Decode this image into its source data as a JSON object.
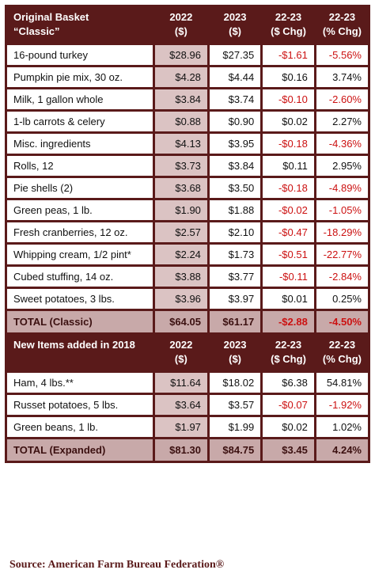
{
  "classic": {
    "header": {
      "name_line1": "Original Basket",
      "name_line2": "“Classic”",
      "y22_line1": "2022",
      "y22_line2": "($)",
      "y23_line1": "2023",
      "y23_line2": "($)",
      "chg_line1": "22-23",
      "chg_line2": "($ Chg)",
      "pct_line1": "22-23",
      "pct_line2": "(% Chg)"
    },
    "rows": [
      {
        "name": "16-pound turkey",
        "y22": "$28.96",
        "y23": "$27.35",
        "chg": "-$1.61",
        "pct": "-5.56%"
      },
      {
        "name": "Pumpkin pie mix, 30 oz.",
        "y22": "$4.28",
        "y23": "$4.44",
        "chg": "$0.16",
        "pct": "3.74%"
      },
      {
        "name": "Milk, 1 gallon whole",
        "y22": "$3.84",
        "y23": "$3.74",
        "chg": "-$0.10",
        "pct": "-2.60%"
      },
      {
        "name": "1-lb carrots & celery",
        "y22": "$0.88",
        "y23": "$0.90",
        "chg": "$0.02",
        "pct": "2.27%"
      },
      {
        "name": "Misc. ingredients",
        "y22": "$4.13",
        "y23": "$3.95",
        "chg": "-$0.18",
        "pct": "-4.36%"
      },
      {
        "name": "Rolls, 12",
        "y22": "$3.73",
        "y23": "$3.84",
        "chg": "$0.11",
        "pct": "2.95%"
      },
      {
        "name": "Pie shells (2)",
        "y22": "$3.68",
        "y23": "$3.50",
        "chg": "-$0.18",
        "pct": "-4.89%"
      },
      {
        "name": "Green peas, 1 lb.",
        "y22": "$1.90",
        "y23": "$1.88",
        "chg": "-$0.02",
        "pct": "-1.05%"
      },
      {
        "name": "Fresh cranberries, 12 oz.",
        "y22": "$2.57",
        "y23": "$2.10",
        "chg": "-$0.47",
        "pct": "-18.29%"
      },
      {
        "name": "Whipping cream, 1/2 pint*",
        "y22": "$2.24",
        "y23": "$1.73",
        "chg": "-$0.51",
        "pct": "-22.77%"
      },
      {
        "name": "Cubed stuffing, 14 oz.",
        "y22": "$3.88",
        "y23": "$3.77",
        "chg": "-$0.11",
        "pct": "-2.84%"
      },
      {
        "name": "Sweet potatoes, 3 lbs.",
        "y22": "$3.96",
        "y23": "$3.97",
        "chg": "$0.01",
        "pct": "0.25%"
      }
    ],
    "total": {
      "name": "TOTAL (Classic)",
      "y22": "$64.05",
      "y23": "$61.17",
      "chg": "-$2.88",
      "pct": "-4.50%"
    }
  },
  "expanded": {
    "header": {
      "name_line1": "New Items added in 2018",
      "y22_line1": "2022",
      "y22_line2": "($)",
      "y23_line1": "2023",
      "y23_line2": "($)",
      "chg_line1": "22-23",
      "chg_line2": "($ Chg)",
      "pct_line1": "22-23",
      "pct_line2": "(% Chg)"
    },
    "rows": [
      {
        "name": "Ham, 4 lbs.**",
        "y22": "$11.64",
        "y23": "$18.02",
        "chg": "$6.38",
        "pct": "54.81%"
      },
      {
        "name": "Russet potatoes, 5 lbs.",
        "y22": "$3.64",
        "y23": "$3.57",
        "chg": "-$0.07",
        "pct": "-1.92%"
      },
      {
        "name": "Green beans, 1 lb.",
        "y22": "$1.97",
        "y23": "$1.99",
        "chg": "$0.02",
        "pct": "1.02%"
      }
    ],
    "total": {
      "name": "TOTAL (Expanded)",
      "y22": "$81.30",
      "y23": "$84.75",
      "chg": "$3.45",
      "pct": "4.24%"
    }
  },
  "source": "Source: American Farm Bureau Federation®",
  "colors": {
    "header_bg": "#5a1a1a",
    "y22_bg": "#dbc3c3",
    "total_bg": "#c8a9a9",
    "negative": "#cc1111"
  }
}
